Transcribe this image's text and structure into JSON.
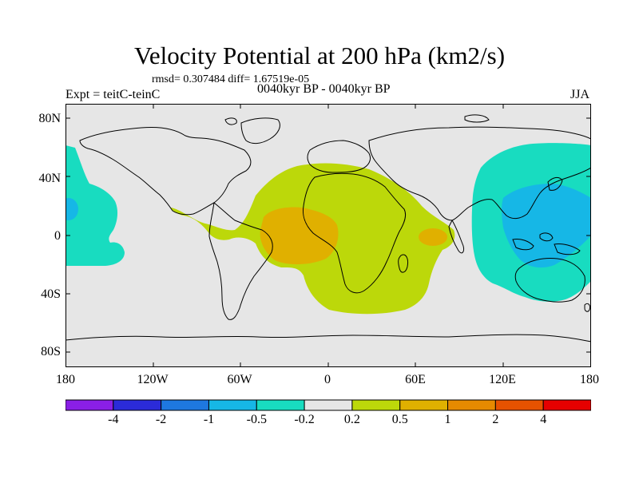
{
  "title": "Velocity Potential at 200 hPa (km2/s)",
  "stats": "rmsd= 0.307484 diff= 1.67519e-05",
  "left_label": "Expt = teitC-teinC",
  "center_label": "0040kyr BP - 0040kyr BP",
  "right_label": "JJA",
  "lat_labels": [
    "80N",
    "40N",
    "0",
    "40S",
    "80S"
  ],
  "lon_labels": [
    "180",
    "120W",
    "60W",
    "0",
    "60E",
    "120E",
    "180"
  ],
  "colorbar": {
    "colors": [
      "#8a1fe6",
      "#2b2bd9",
      "#1e78e0",
      "#16b7e6",
      "#18dcc0",
      "#e6e6e6",
      "#bcd80a",
      "#e0b000",
      "#e68a00",
      "#e65200",
      "#e60000"
    ],
    "labels": [
      "-4",
      "-2",
      "-1",
      "-0.5",
      "-0.2",
      "0.2",
      "0.5",
      "1",
      "2",
      "4"
    ]
  },
  "map_colors": {
    "background": "#e6e6e6",
    "neg_weak": "#18dcc0",
    "neg_mid": "#16b7e6",
    "pos_weak": "#bcd80a",
    "pos_mid": "#e0b000"
  }
}
